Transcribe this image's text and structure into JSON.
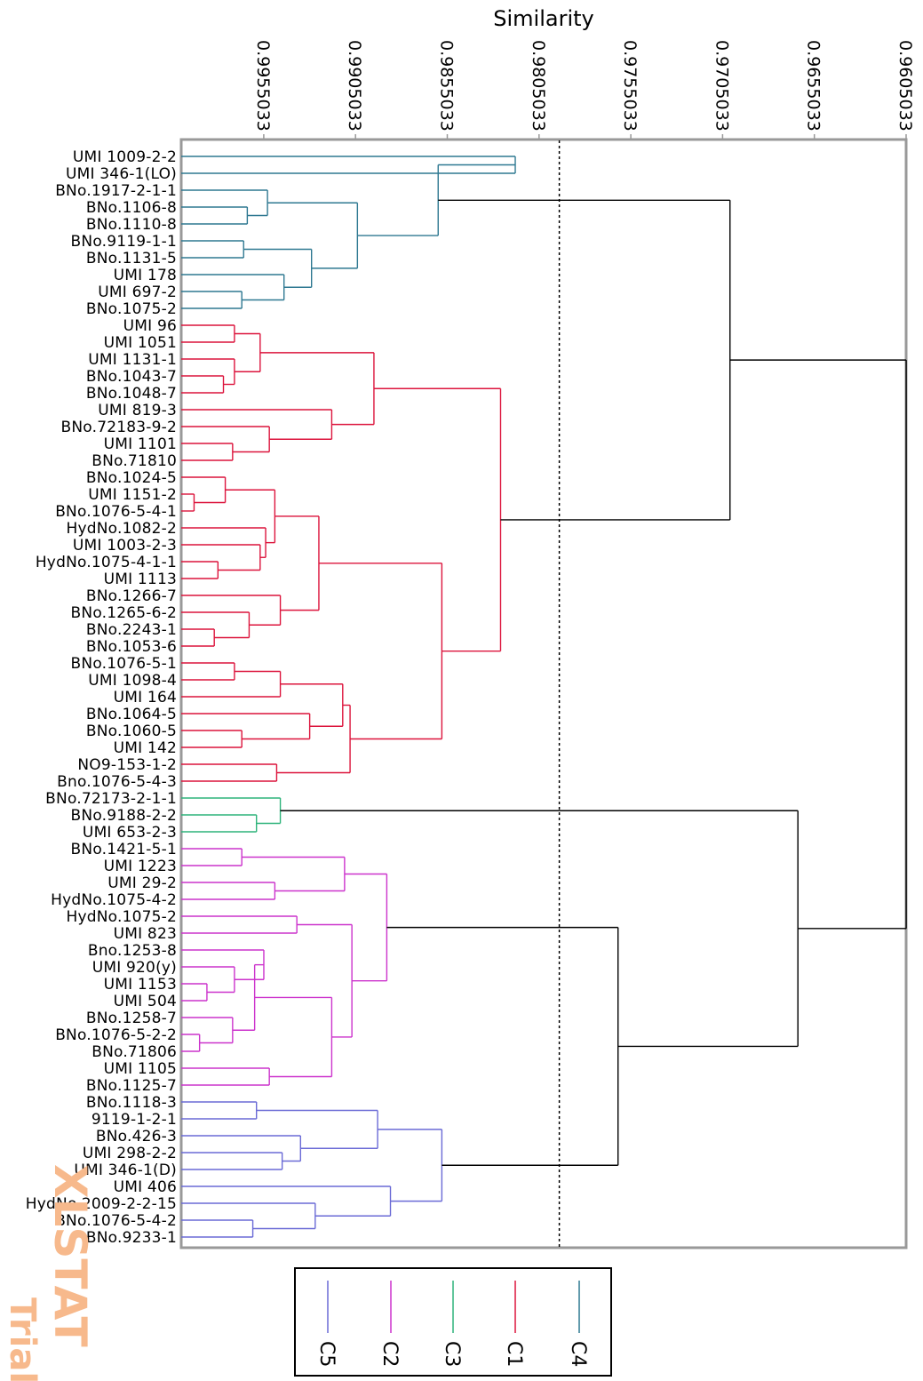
{
  "chart_data": {
    "type": "dendrogram",
    "title": "Similarity",
    "x_axis": {
      "label": "Similarity",
      "ticks": [
        "0.9955033",
        "0.9905033",
        "0.9855033",
        "0.9805033",
        "0.9755033",
        "0.9705033",
        "0.9655033",
        "0.9605033"
      ],
      "range": [
        1.0,
        0.9605033
      ]
    },
    "truncation_line": 0.9794,
    "leaves": [
      "UMI 1009-2-2",
      "UMI 346-1(LO)",
      "BNo.1917-2-1-1",
      "BNo.1106-8",
      "BNo.1110-8",
      "BNo.9119-1-1",
      "BNo.1131-5",
      "UMI 178",
      "UMI 697-2",
      "BNo.1075-2",
      "UMI 96",
      "UMI 1051",
      "UMI 1131-1",
      "BNo.1043-7",
      "BNo.1048-7",
      "UMI 819-3",
      "BNo.72183-9-2",
      "UMI 1101",
      "BNo.71810",
      "BNo.1024-5",
      "UMI 1151-2",
      "BNo.1076-5-4-1",
      "HydNo.1082-2",
      "UMI 1003-2-3",
      "HydNo.1075-4-1-1",
      "UMI 1113",
      "BNo.1266-7",
      "BNo.1265-6-2",
      "BNo.2243-1",
      "BNo.1053-6",
      "BNo.1076-5-1",
      "UMI 1098-4",
      "UMI 164",
      "BNo.1064-5",
      "BNo.1060-5",
      "UMI 142",
      "NO9-153-1-2",
      "Bno.1076-5-4-3",
      "BNo.72173-2-1-1",
      "BNo.9188-2-2",
      "UMI 653-2-3",
      "BNo.1421-5-1",
      "UMI 1223",
      "UMI 29-2",
      "HydNo.1075-4-2",
      "HydNo.1075-2",
      "UMI 823",
      "Bno.1253-8",
      "UMI 920(y)",
      "UMI 1153",
      "UMI 504",
      "BNo.1258-7",
      "BNo.1076-5-2-2",
      "BNo.71806",
      "UMI 1105",
      "BNo.1125-7",
      "BNo.1118-3",
      "9119-1-2-1",
      "BNo.426-3",
      "UMI 298-2-2",
      "UMI 346-1(D)",
      "UMI 406",
      "HydNo.2009-2-2-15",
      "BNo.1076-5-4-2",
      "BNo.9233-1"
    ],
    "clusters": [
      {
        "name": "C4",
        "color": "#2e7891",
        "leaves": [
          0,
          9
        ]
      },
      {
        "name": "C1",
        "color": "#dc143c",
        "leaves": [
          10,
          37
        ]
      },
      {
        "name": "C3",
        "color": "#2db37a",
        "leaves": [
          38,
          40
        ]
      },
      {
        "name": "C2",
        "color": "#cc33cc",
        "leaves": [
          41,
          55
        ]
      },
      {
        "name": "C5",
        "color": "#6a6ad6",
        "leaves": [
          56,
          64
        ]
      }
    ],
    "legend": [
      "C5",
      "C2",
      "C3",
      "C1",
      "C4"
    ],
    "legend_placement": "bottom",
    "merges": [
      {
        "id": "A",
        "c": [
          0,
          1
        ],
        "h": 0.9818
      },
      {
        "id": "B",
        "c": [
          3,
          4
        ],
        "h": 0.9964
      },
      {
        "id": "B2",
        "c": [
          2,
          "B"
        ],
        "h": 0.9953
      },
      {
        "id": "C",
        "c": [
          5,
          6
        ],
        "h": 0.9966
      },
      {
        "id": "D",
        "c": [
          8,
          9
        ],
        "h": 0.9967
      },
      {
        "id": "D2",
        "c": [
          7,
          "D"
        ],
        "h": 0.9944
      },
      {
        "id": "D3",
        "c": [
          "C",
          "D2"
        ],
        "h": 0.9929
      },
      {
        "id": "E",
        "c": [
          "B2",
          "D3"
        ],
        "h": 0.9904
      },
      {
        "id": "F",
        "c": [
          "E",
          "A"
        ],
        "h": 0.986
      },
      {
        "id": "G",
        "c": [
          10,
          11
        ],
        "h": 0.9971
      },
      {
        "id": "H",
        "c": [
          13,
          14
        ],
        "h": 0.9977
      },
      {
        "id": "H2",
        "c": [
          12,
          "H"
        ],
        "h": 0.9971
      },
      {
        "id": "H3",
        "c": [
          "G",
          "H2"
        ],
        "h": 0.9957
      },
      {
        "id": "I",
        "c": [
          17,
          18
        ],
        "h": 0.9972
      },
      {
        "id": "I2",
        "c": [
          16,
          "I"
        ],
        "h": 0.9952
      },
      {
        "id": "I3",
        "c": [
          15,
          "I2"
        ],
        "h": 0.9918
      },
      {
        "id": "J",
        "c": [
          "H3",
          "I3"
        ],
        "h": 0.9895
      },
      {
        "id": "K",
        "c": [
          20,
          21
        ],
        "h": 0.9993
      },
      {
        "id": "K2",
        "c": [
          19,
          "K"
        ],
        "h": 0.9976
      },
      {
        "id": "L",
        "c": [
          24,
          25
        ],
        "h": 0.998
      },
      {
        "id": "L2",
        "c": [
          23,
          "L"
        ],
        "h": 0.9957
      },
      {
        "id": "L3",
        "c": [
          22,
          "L2"
        ],
        "h": 0.9954
      },
      {
        "id": "M",
        "c": [
          "K2",
          "L3"
        ],
        "h": 0.9949
      },
      {
        "id": "N",
        "c": [
          28,
          29
        ],
        "h": 0.9982
      },
      {
        "id": "N2",
        "c": [
          27,
          "N"
        ],
        "h": 0.9963
      },
      {
        "id": "N3",
        "c": [
          26,
          "N2"
        ],
        "h": 0.9946
      },
      {
        "id": "O",
        "c": [
          "M",
          "N3"
        ],
        "h": 0.9925
      },
      {
        "id": "P",
        "c": [
          30,
          31
        ],
        "h": 0.9971
      },
      {
        "id": "P2",
        "c": [
          "P",
          32
        ],
        "h": 0.9946
      },
      {
        "id": "Q",
        "c": [
          34,
          35
        ],
        "h": 0.9967
      },
      {
        "id": "Q2",
        "c": [
          33,
          "Q"
        ],
        "h": 0.993
      },
      {
        "id": "R",
        "c": [
          "P2",
          "Q2"
        ],
        "h": 0.9912
      },
      {
        "id": "R2",
        "c": [
          36,
          37
        ],
        "h": 0.9948
      },
      {
        "id": "R3",
        "c": [
          "R",
          "R2"
        ],
        "h": 0.9908
      },
      {
        "id": "S",
        "c": [
          "O",
          "R3"
        ],
        "h": 0.9858
      },
      {
        "id": "T",
        "c": [
          "J",
          "S"
        ],
        "h": 0.9826
      },
      {
        "id": "U",
        "c": [
          "F",
          "T"
        ],
        "h": 0.9701
      },
      {
        "id": "V",
        "c": [
          39,
          40
        ],
        "h": 0.9959
      },
      {
        "id": "V2",
        "c": [
          38,
          "V"
        ],
        "h": 0.9946
      },
      {
        "id": "W",
        "c": [
          41,
          42
        ],
        "h": 0.9967
      },
      {
        "id": "W2",
        "c": [
          43,
          44
        ],
        "h": 0.9949
      },
      {
        "id": "W3",
        "c": [
          "W",
          "W2"
        ],
        "h": 0.9911
      },
      {
        "id": "X",
        "c": [
          45,
          46
        ],
        "h": 0.9937
      },
      {
        "id": "Y",
        "c": [
          49,
          50
        ],
        "h": 0.9986
      },
      {
        "id": "Y2",
        "c": [
          48,
          "Y"
        ],
        "h": 0.9971
      },
      {
        "id": "Y3",
        "c": [
          47,
          "Y2"
        ],
        "h": 0.9955
      },
      {
        "id": "Z",
        "c": [
          52,
          53
        ],
        "h": 0.999
      },
      {
        "id": "Z2",
        "c": [
          51,
          "Z"
        ],
        "h": 0.9972
      },
      {
        "id": "Z3",
        "c": [
          "Y3",
          "Z2"
        ],
        "h": 0.996
      },
      {
        "id": "a1",
        "c": [
          54,
          55
        ],
        "h": 0.9952
      },
      {
        "id": "a2",
        "c": [
          "Z3",
          "a1"
        ],
        "h": 0.9918
      },
      {
        "id": "a3",
        "c": [
          "X",
          "a2"
        ],
        "h": 0.9907
      },
      {
        "id": "a4",
        "c": [
          "W3",
          "a3"
        ],
        "h": 0.9888
      },
      {
        "id": "b1",
        "c": [
          56,
          57
        ],
        "h": 0.9959
      },
      {
        "id": "b2",
        "c": [
          59,
          60
        ],
        "h": 0.9945
      },
      {
        "id": "b3",
        "c": [
          58,
          "b2"
        ],
        "h": 0.9935
      },
      {
        "id": "b4",
        "c": [
          "b1",
          "b3"
        ],
        "h": 0.9893
      },
      {
        "id": "b5",
        "c": [
          63,
          64
        ],
        "h": 0.9961
      },
      {
        "id": "b6",
        "c": [
          62,
          "b5"
        ],
        "h": 0.9927
      },
      {
        "id": "b7",
        "c": [
          61,
          "b6"
        ],
        "h": 0.9886
      },
      {
        "id": "b8",
        "c": [
          "b4",
          "b7"
        ],
        "h": 0.9858
      },
      {
        "id": "c1",
        "c": [
          "a4",
          "b8"
        ],
        "h": 0.9762
      },
      {
        "id": "c2",
        "c": [
          "V2",
          "c1"
        ],
        "h": 0.9664
      },
      {
        "id": "root",
        "c": [
          "U",
          "c2"
        ],
        "h": 0.9605
      }
    ]
  },
  "watermark": {
    "brand": "XLSTAT",
    "edition": "Trial"
  }
}
